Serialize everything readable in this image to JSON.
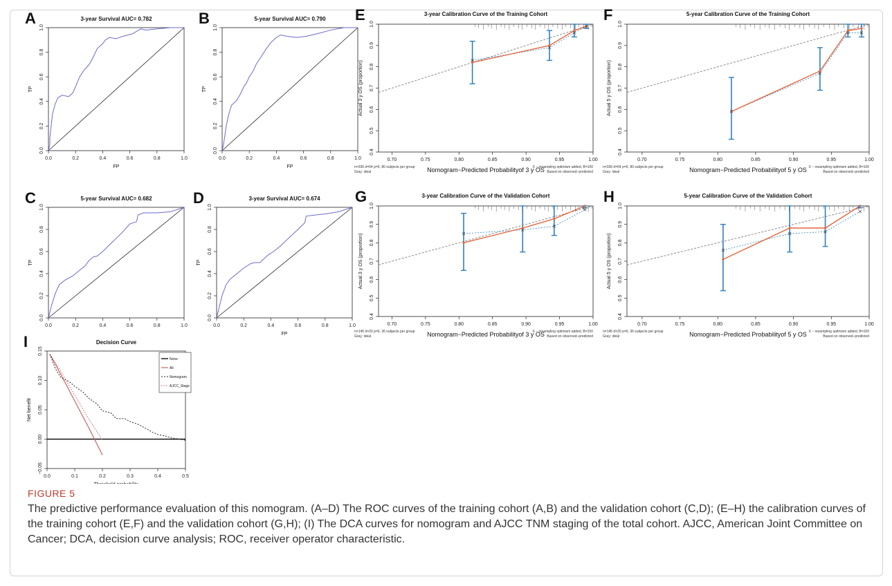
{
  "figure": {
    "label": "FIGURE 5",
    "caption": "The predictive performance evaluation of this nomogram. (A–D) The ROC curves of the training cohort (A,B) and the validation cohort (C,D); (E–H) the calibration curves of the training cohort (E,F) and the validation cohort (G,H); (I) The DCA curves for nomogram and AJCC TNM staging of the total cohort. AJCC, American Joint Committee on Cancer; DCA, decision curve analysis; ROC, receiver operator characteristic."
  },
  "colors": {
    "roc_curve": "#6a6ad0",
    "calibration_line": "#e2673e",
    "error_bar": "#2e7fc0",
    "ideal_line": "#888888",
    "caption_label": "#c0392b"
  },
  "chart_data": [
    {
      "panel": "A",
      "type": "line",
      "title": "3-year Survival AUC= 0.782",
      "xlabel": "FP",
      "ylabel": "TP",
      "xlim": [
        0,
        1
      ],
      "ylim": [
        0,
        1
      ],
      "xticks": [
        "0.0",
        "0.2",
        "0.4",
        "0.6",
        "0.8",
        "1.0"
      ],
      "yticks": [
        "0.0",
        "0.2",
        "0.4",
        "0.6",
        "0.8",
        "1.0"
      ],
      "series": [
        {
          "x": [
            0,
            0.01,
            0.01,
            0.02,
            0.03,
            0.05,
            0.07,
            0.1,
            0.15,
            0.18,
            0.2,
            0.23,
            0.26,
            0.3,
            0.33,
            0.36,
            0.4,
            0.42,
            0.45,
            0.5,
            0.55,
            0.62,
            0.68,
            0.72,
            0.8,
            0.9,
            1.0
          ],
          "y": [
            0,
            0.05,
            0.1,
            0.2,
            0.3,
            0.38,
            0.43,
            0.45,
            0.44,
            0.47,
            0.52,
            0.6,
            0.65,
            0.7,
            0.76,
            0.83,
            0.87,
            0.9,
            0.92,
            0.91,
            0.93,
            0.95,
            0.99,
            0.98,
            0.99,
            1.0,
            1.0
          ]
        },
        {
          "x": [
            0,
            1
          ],
          "y": [
            0,
            1
          ]
        }
      ]
    },
    {
      "panel": "B",
      "type": "line",
      "title": "5-year Survival AUC= 0.790",
      "xlabel": "FP",
      "ylabel": "TP",
      "xlim": [
        0,
        1
      ],
      "ylim": [
        0,
        1
      ],
      "xticks": [
        "0.0",
        "0.2",
        "0.4",
        "0.6",
        "0.8",
        "1.0"
      ],
      "yticks": [
        "0.0",
        "0.2",
        "0.4",
        "0.6",
        "0.8",
        "1.0"
      ],
      "series": [
        {
          "x": [
            0,
            0.01,
            0.02,
            0.03,
            0.05,
            0.07,
            0.1,
            0.13,
            0.16,
            0.18,
            0.2,
            0.23,
            0.25,
            0.28,
            0.32,
            0.36,
            0.4,
            0.43,
            0.48,
            0.55,
            0.62,
            0.7,
            0.8,
            0.9,
            1.0
          ],
          "y": [
            0,
            0.05,
            0.12,
            0.2,
            0.3,
            0.37,
            0.4,
            0.45,
            0.52,
            0.55,
            0.6,
            0.65,
            0.7,
            0.75,
            0.82,
            0.88,
            0.92,
            0.94,
            0.93,
            0.92,
            0.93,
            0.95,
            0.98,
            1.0,
            1.0
          ]
        },
        {
          "x": [
            0,
            1
          ],
          "y": [
            0,
            1
          ]
        }
      ]
    },
    {
      "panel": "C",
      "type": "line",
      "title": "5-year Survival AUC= 0.682",
      "xlabel": "",
      "ylabel": "TP",
      "xlim": [
        0,
        1
      ],
      "ylim": [
        0,
        1
      ],
      "xticks": [
        "0.0",
        "0.2",
        "0.4",
        "0.6",
        "0.8",
        "1.0"
      ],
      "yticks": [
        "0.0",
        "0.2",
        "0.4",
        "0.6",
        "0.8",
        "1.0"
      ],
      "series": [
        {
          "x": [
            0,
            0.02,
            0.05,
            0.08,
            0.12,
            0.18,
            0.22,
            0.27,
            0.3,
            0.33,
            0.36,
            0.4,
            0.45,
            0.5,
            0.55,
            0.6,
            0.65,
            0.66,
            0.7,
            0.8,
            0.9,
            1.0
          ],
          "y": [
            0,
            0.1,
            0.22,
            0.3,
            0.34,
            0.38,
            0.42,
            0.47,
            0.52,
            0.55,
            0.56,
            0.6,
            0.66,
            0.72,
            0.78,
            0.85,
            0.87,
            0.93,
            0.95,
            0.95,
            0.96,
            1.0
          ]
        },
        {
          "x": [
            0,
            1
          ],
          "y": [
            0,
            1
          ]
        }
      ]
    },
    {
      "panel": "D",
      "type": "line",
      "title": "3-year Survival AUC= 0.674",
      "xlabel": "FP",
      "ylabel": "TP",
      "xlim": [
        0,
        1
      ],
      "ylim": [
        0,
        1
      ],
      "xticks": [
        "0.0",
        "0.2",
        "0.4",
        "0.6",
        "0.8",
        "1.0"
      ],
      "yticks": [
        "0.0",
        "0.2",
        "0.4",
        "0.6",
        "0.8",
        "1.0"
      ],
      "series": [
        {
          "x": [
            0,
            0.02,
            0.04,
            0.07,
            0.1,
            0.15,
            0.2,
            0.25,
            0.28,
            0.32,
            0.38,
            0.42,
            0.47,
            0.53,
            0.6,
            0.65,
            0.66,
            0.72,
            0.8,
            0.9,
            1.0
          ],
          "y": [
            0,
            0.1,
            0.2,
            0.3,
            0.35,
            0.4,
            0.45,
            0.49,
            0.5,
            0.5,
            0.57,
            0.6,
            0.65,
            0.72,
            0.8,
            0.86,
            0.92,
            0.93,
            0.94,
            0.96,
            1.0
          ]
        },
        {
          "x": [
            0,
            1
          ],
          "y": [
            0,
            1
          ]
        }
      ]
    },
    {
      "panel": "E",
      "type": "line",
      "title": "3-year Calibration Curve of the Training Cohort",
      "xlabel": "Nomogram−Predicted Probabilityof 3 y OS",
      "ylabel": "Actual 3 y OS (proportion)",
      "xlim": [
        0.68,
        1.0
      ],
      "ylim": [
        0.4,
        1.0
      ],
      "xticks": [
        "0.70",
        "0.75",
        "0.80",
        "0.85",
        "0.90",
        "0.95",
        "1.00"
      ],
      "yticks": [
        "0.4",
        "0.5",
        "0.6",
        "0.7",
        "0.8",
        "0.9",
        "1.0"
      ],
      "footnote_left": [
        "n=336 d=64 p=6, 80 subjects per group",
        "Gray: ideal"
      ],
      "footnote_right": [
        "X − resampling optimism added, B=100",
        "Based on observed−predicted"
      ],
      "points": [
        {
          "x": 0.82,
          "y": 0.82,
          "lo": 0.72,
          "hi": 0.92,
          "xcorr": 0.83
        },
        {
          "x": 0.935,
          "y": 0.9,
          "lo": 0.83,
          "hi": 0.97,
          "xcorr": 0.89
        },
        {
          "x": 0.972,
          "y": 0.97,
          "lo": 0.94,
          "hi": 1.0,
          "xcorr": 0.96
        },
        {
          "x": 0.99,
          "y": 0.99,
          "lo": 0.98,
          "hi": 1.0,
          "xcorr": 0.99
        }
      ]
    },
    {
      "panel": "F",
      "type": "line",
      "title": "5-year Calibration Curve of the Training Cohort",
      "xlabel": "Nomogram−Predicted Probabilityof 5 y OS",
      "ylabel": "Actual 5 y OS (proportion)",
      "xlim": [
        0.68,
        1.0
      ],
      "ylim": [
        0.4,
        1.0
      ],
      "xticks": [
        "0.70",
        "0.75",
        "0.80",
        "0.85",
        "0.90",
        "0.95",
        "1.00"
      ],
      "yticks": [
        "0.4",
        "0.5",
        "0.6",
        "0.7",
        "0.8",
        "0.9",
        "1.0"
      ],
      "footnote_left": [
        "n=336 d=64 p=6, 80 subjects per group",
        "Gray: ideal"
      ],
      "footnote_right": [
        "X − resampling optimism added, B=100",
        "Based on observed−predicted"
      ],
      "points": [
        {
          "x": 0.818,
          "y": 0.59,
          "lo": 0.46,
          "hi": 0.75,
          "xcorr": 0.59
        },
        {
          "x": 0.935,
          "y": 0.78,
          "lo": 0.69,
          "hi": 0.89,
          "xcorr": 0.77
        },
        {
          "x": 0.972,
          "y": 0.97,
          "lo": 0.94,
          "hi": 1.0,
          "xcorr": 0.96
        },
        {
          "x": 0.99,
          "y": 0.98,
          "lo": 0.94,
          "hi": 1.0,
          "xcorr": 0.96
        }
      ]
    },
    {
      "panel": "G",
      "type": "line",
      "title": "3-year Calibration Curve of the Validation Cohort",
      "xlabel": "Nomogram−Predicted Probabilityof 3 y OS",
      "ylabel": "Actual 3 y OS (proportion)",
      "xlim": [
        0.68,
        1.0
      ],
      "ylim": [
        0.4,
        1.0
      ],
      "xticks": [
        "0.70",
        "0.75",
        "0.80",
        "0.85",
        "0.90",
        "0.95",
        "1.00"
      ],
      "yticks": [
        "0.4",
        "0.5",
        "0.6",
        "0.7",
        "0.8",
        "0.9",
        "1.0"
      ],
      "footnote_left": [
        "n=145 d=20 p=6, 36 subjects per group",
        "Gray: ideal"
      ],
      "footnote_right": [
        "X − resampling optimism added, B=100",
        "Based on observed−predicted"
      ],
      "points": [
        {
          "x": 0.807,
          "y": 0.8,
          "lo": 0.65,
          "hi": 0.96,
          "xcorr": 0.85
        },
        {
          "x": 0.895,
          "y": 0.88,
          "lo": 0.75,
          "hi": 1.0,
          "xcorr": 0.87
        },
        {
          "x": 0.942,
          "y": 0.93,
          "lo": 0.84,
          "hi": 1.0,
          "xcorr": 0.89
        },
        {
          "x": 0.988,
          "y": 1.0,
          "lo": 0.99,
          "hi": 1.0,
          "xcorr": 0.98
        }
      ]
    },
    {
      "panel": "H",
      "type": "line",
      "title": "5-year Calibration Curve of the Validation Cohort",
      "xlabel": "Nomogram−Predicted Probabilityof 5 y OS",
      "ylabel": "Actual 5 y OS (proportion)",
      "xlim": [
        0.68,
        1.0
      ],
      "ylim": [
        0.4,
        1.0
      ],
      "xticks": [
        "0.70",
        "0.75",
        "0.80",
        "0.85",
        "0.90",
        "0.95",
        "1.00"
      ],
      "yticks": [
        "0.4",
        "0.5",
        "0.6",
        "0.7",
        "0.8",
        "0.9",
        "1.0"
      ],
      "footnote_left": [
        "n=145 d=20 p=6, 36 subjects per group",
        "Gray: ideal"
      ],
      "footnote_right": [
        "X − resampling optimism added, B=100",
        "Based on observed−predicted"
      ],
      "points": [
        {
          "x": 0.807,
          "y": 0.71,
          "lo": 0.54,
          "hi": 0.9,
          "xcorr": 0.76
        },
        {
          "x": 0.895,
          "y": 0.88,
          "lo": 0.75,
          "hi": 1.0,
          "xcorr": 0.85
        },
        {
          "x": 0.942,
          "y": 0.88,
          "lo": 0.78,
          "hi": 1.0,
          "xcorr": 0.86
        },
        {
          "x": 0.988,
          "y": 1.0,
          "lo": 0.99,
          "hi": 1.0,
          "xcorr": 0.97
        }
      ]
    },
    {
      "panel": "I",
      "type": "line",
      "title": "Decision Curve",
      "xlabel": "Threshold probability",
      "ylabel": "Net benefit",
      "xlim": [
        0,
        0.5
      ],
      "ylim": [
        -0.05,
        0.15
      ],
      "xticks": [
        "0.0",
        "0.1",
        "0.2",
        "0.3",
        "0.4",
        "0.5"
      ],
      "yticks": [
        "−0.05",
        "0.00",
        "0.05",
        "0.10",
        "0.15"
      ],
      "legend": [
        "None",
        "All",
        "Nomogram",
        "AJCC_Stage"
      ],
      "legend_position": "top-right",
      "series": [
        {
          "name": "None",
          "x": [
            0,
            0.5
          ],
          "y": [
            0,
            0
          ]
        },
        {
          "name": "All",
          "x": [
            0.01,
            0.05,
            0.1,
            0.15,
            0.2
          ],
          "y": [
            0.145,
            0.11,
            0.065,
            0.02,
            -0.027
          ]
        },
        {
          "name": "Nomogram",
          "x": [
            0.01,
            0.03,
            0.05,
            0.08,
            0.1,
            0.13,
            0.15,
            0.18,
            0.2,
            0.23,
            0.25,
            0.28,
            0.3,
            0.33,
            0.35,
            0.38,
            0.4,
            0.43,
            0.45,
            0.48,
            0.5
          ],
          "y": [
            0.145,
            0.12,
            0.105,
            0.098,
            0.09,
            0.08,
            0.07,
            0.06,
            0.048,
            0.045,
            0.035,
            0.035,
            0.03,
            0.025,
            0.02,
            0.012,
            0.008,
            0.005,
            0.002,
            0.0,
            -0.002
          ]
        },
        {
          "name": "AJCC_Stage",
          "x": [
            0.01,
            0.05,
            0.1,
            0.15,
            0.2
          ],
          "y": [
            0.145,
            0.115,
            0.075,
            0.035,
            -0.002
          ]
        }
      ]
    }
  ]
}
